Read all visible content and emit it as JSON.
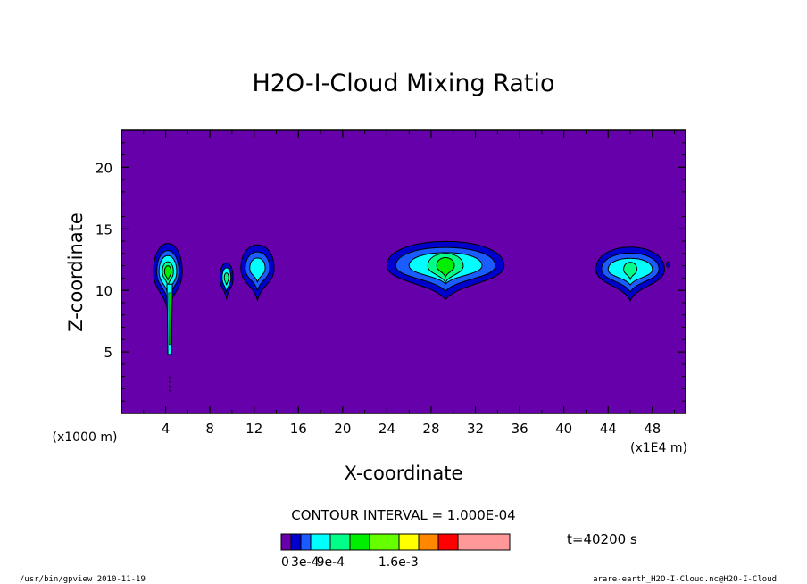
{
  "chart_data": {
    "type": "contour",
    "title": "H2O-I-Cloud Mixing Ratio",
    "xlabel": "X-coordinate",
    "ylabel": "Z-coordinate",
    "x_unit_label": "(x1E4 m)",
    "y_unit_label": "(x1000 m)",
    "xlim": [
      0,
      51
    ],
    "ylim": [
      0,
      23
    ],
    "x_ticks": [
      4,
      8,
      12,
      16,
      20,
      24,
      28,
      32,
      36,
      40,
      44,
      48
    ],
    "y_ticks": [
      5,
      10,
      15,
      20
    ],
    "background_color": "#6600aa",
    "contour_interval_text": "CONTOUR INTERVAL = 1.000E-04",
    "time_text": "t=40200 s",
    "colorbar": {
      "colors": [
        "#6600aa",
        "#0000cc",
        "#1a5cff",
        "#00ffff",
        "#00ff88",
        "#00ee00",
        "#66ff00",
        "#ffff00",
        "#ff8800",
        "#ff0000",
        "#ff9999"
      ],
      "labels": [
        {
          "text": "0",
          "index": 0
        },
        {
          "text": "3e-4",
          "index": 1
        },
        {
          "text": "9e-4",
          "index": 3.3
        },
        {
          "text": "1.6e-3",
          "index": 6.3
        }
      ]
    },
    "clouds": [
      {
        "x": 4.2,
        "z": 11.5,
        "levels": [
          {
            "rx": 1.3,
            "rz": 2.8,
            "color": "#0000cc"
          },
          {
            "rx": 1.0,
            "rz": 2.1,
            "color": "#1a5cff"
          },
          {
            "rx": 0.8,
            "rz": 1.6,
            "color": "#00ffff"
          },
          {
            "rx": 0.5,
            "rz": 1.0,
            "color": "#00ff88"
          },
          {
            "rx": 0.3,
            "rz": 0.6,
            "color": "#00ee00"
          }
        ]
      },
      {
        "x": 9.5,
        "z": 11.0,
        "levels": [
          {
            "rx": 0.6,
            "rz": 1.5,
            "color": "#0000cc"
          },
          {
            "rx": 0.4,
            "rz": 1.0,
            "color": "#00ffff"
          },
          {
            "rx": 0.2,
            "rz": 0.5,
            "color": "#00ff88"
          }
        ]
      },
      {
        "x": 12.3,
        "z": 11.8,
        "levels": [
          {
            "rx": 1.5,
            "rz": 2.3,
            "color": "#0000cc"
          },
          {
            "rx": 1.1,
            "rz": 1.6,
            "color": "#1a5cff"
          },
          {
            "rx": 0.7,
            "rz": 1.0,
            "color": "#00ffff"
          }
        ]
      },
      {
        "x": 29.3,
        "z": 12.0,
        "levels": [
          {
            "rx": 5.3,
            "rz": 2.4,
            "color": "#0000cc"
          },
          {
            "rx": 4.5,
            "rz": 1.8,
            "color": "#1a5cff"
          },
          {
            "rx": 3.3,
            "rz": 1.3,
            "color": "#00ffff"
          },
          {
            "rx": 1.6,
            "rz": 1.2,
            "color": "#00ff88"
          },
          {
            "rx": 0.8,
            "rz": 0.8,
            "color": "#00ee00"
          }
        ]
      },
      {
        "x": 46.0,
        "z": 11.7,
        "levels": [
          {
            "rx": 3.1,
            "rz": 2.2,
            "color": "#0000cc"
          },
          {
            "rx": 2.6,
            "rz": 1.6,
            "color": "#1a5cff"
          },
          {
            "rx": 2.0,
            "rz": 1.1,
            "color": "#00ffff"
          },
          {
            "rx": 0.6,
            "rz": 0.7,
            "color": "#00ff88"
          }
        ]
      }
    ]
  },
  "footer": {
    "left": "/usr/bin/gpview  2010-11-19",
    "right": "arare-earth_H2O-I-Cloud.nc@H2O-I-Cloud"
  }
}
